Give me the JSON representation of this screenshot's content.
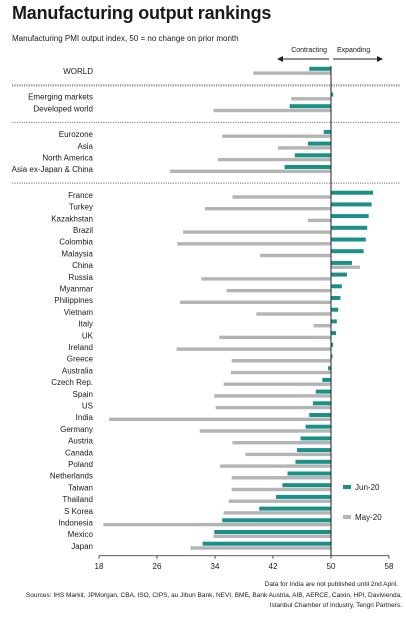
{
  "header": {
    "title": "Manufacturing output rankings",
    "subtitle": "Manufacturing PMI output index, 50 = no change on prior month"
  },
  "direction": {
    "contracting": "Contracting",
    "expanding": "Expanding"
  },
  "footer": {
    "note": "Data for India are not published until 2nd April.",
    "sources": "Sources: IHS Markit, JPMorgan, CBA, ISO, CIPS, au Jibun Bank, NEVI, BME, Bank Austria, AIB, AERCE, Caixin, HPI, Davivienda, Istanbul Chamber of Industry, Tengri Partners."
  },
  "colors": {
    "jun": "#1a9089",
    "may": "#b4b4b4",
    "axis": "#222222",
    "sep": "#555555"
  },
  "chart_data": {
    "type": "bar",
    "orientation": "horizontal",
    "xlim": [
      18,
      58
    ],
    "xticks": [
      18,
      26,
      34,
      42,
      50,
      58
    ],
    "reference": 50,
    "groups": [
      {
        "rows": [
          "WORLD"
        ]
      },
      {
        "rows": [
          "Emerging markets",
          "Developed world"
        ]
      },
      {
        "rows": [
          "Eurozone",
          "Asia",
          "North America",
          "Asia ex-Japan & China"
        ]
      },
      {
        "rows": [
          "France",
          "Turkey",
          "Kazakhstan",
          "Brazil",
          "Colombia",
          "Malaysia",
          "China",
          "Russia",
          "Myanmar",
          "Philippines",
          "Vietnam",
          "Italy",
          "UK",
          "Ireland",
          "Greece",
          "Australia",
          "Czech Rep.",
          "Spain",
          "US",
          "India",
          "Germany",
          "Austria",
          "Canada",
          "Poland",
          "Netherlands",
          "Taiwan",
          "Thailand",
          "S Korea",
          "Indonesia",
          "Mexico",
          "Japan"
        ]
      }
    ],
    "series": [
      {
        "name": "Jun-20",
        "values": {
          "WORLD": 47.0,
          "Emerging markets": 50.3,
          "Developed world": 44.3,
          "Eurozone": 49.0,
          "Asia": 46.8,
          "North America": 45.0,
          "Asia ex-Japan & China": 43.6,
          "France": 55.8,
          "Turkey": 55.6,
          "Kazakhstan": 55.2,
          "Brazil": 55.0,
          "Colombia": 54.8,
          "Malaysia": 54.5,
          "China": 52.9,
          "Russia": 52.2,
          "Myanmar": 51.5,
          "Philippines": 51.3,
          "Vietnam": 51.0,
          "Italy": 50.8,
          "UK": 50.7,
          "Ireland": 50.3,
          "Greece": 50.2,
          "Australia": 49.6,
          "Czech Rep.": 48.8,
          "Spain": 47.9,
          "US": 47.5,
          "India": 47.0,
          "Germany": 46.5,
          "Austria": 45.8,
          "Canada": 45.3,
          "Poland": 45.1,
          "Netherlands": 44.0,
          "Taiwan": 43.3,
          "Thailand": 42.4,
          "S Korea": 40.1,
          "Indonesia": 35.0,
          "Mexico": 33.9,
          "Japan": 32.3
        }
      },
      {
        "name": "May-20",
        "values": {
          "WORLD": 39.3,
          "Emerging markets": 44.5,
          "Developed world": 33.8,
          "Eurozone": 35.0,
          "Asia": 42.7,
          "North America": 34.4,
          "Asia ex-Japan & China": 27.8,
          "France": 36.4,
          "Turkey": 32.6,
          "Kazakhstan": 46.8,
          "Brazil": 29.6,
          "Colombia": 28.8,
          "Malaysia": 40.2,
          "China": 54.0,
          "Russia": 32.1,
          "Myanmar": 35.6,
          "Philippines": 29.2,
          "Vietnam": 39.7,
          "Italy": 47.6,
          "UK": 34.6,
          "Ireland": 28.7,
          "Greece": 36.3,
          "Australia": 36.2,
          "Czech Rep.": 35.2,
          "Spain": 33.9,
          "US": 34.1,
          "India": 19.4,
          "Germany": 31.9,
          "Austria": 36.4,
          "Canada": 38.2,
          "Poland": 34.7,
          "Netherlands": 36.3,
          "Taiwan": 36.3,
          "Thailand": 35.9,
          "S Korea": 35.2,
          "Indonesia": 18.6,
          "Mexico": 33.8,
          "Japan": 30.6
        }
      }
    ]
  }
}
